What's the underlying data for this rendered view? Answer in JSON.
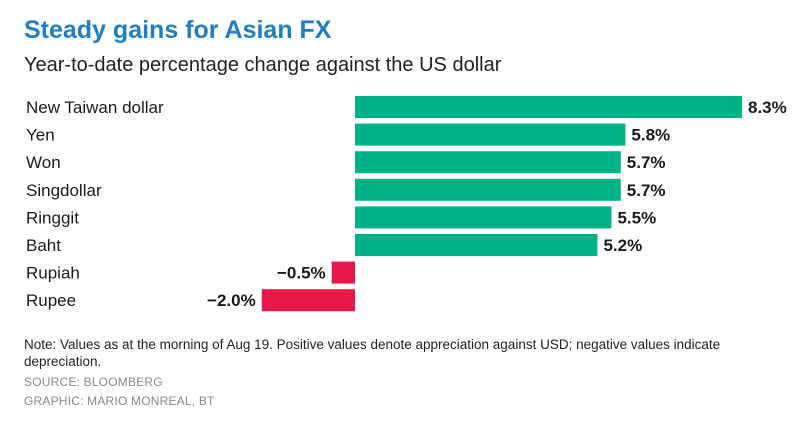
{
  "title": "Steady gains for Asian FX",
  "subtitle": "Year-to-date percentage change against the US dollar",
  "note": "Note: Values as at the morning of Aug 19. Positive values denote appreciation against USD; negative values indicate depreciation.",
  "source": "SOURCE: BLOOMBERG",
  "graphic": "GRAPHIC: MARIO MONREAL, BT",
  "colors": {
    "positive": "#00b386",
    "negative": "#e8194a",
    "title": "#1f7fc0"
  },
  "chart_data": {
    "type": "bar",
    "orientation": "horizontal",
    "title": "Steady gains for Asian FX",
    "subtitle": "Year-to-date percentage change against the US dollar",
    "categories": [
      "New Taiwan dollar",
      "Yen",
      "Won",
      "Singdollar",
      "Ringgit",
      "Baht",
      "Rupiah",
      "Rupee"
    ],
    "values": [
      8.3,
      5.8,
      5.7,
      5.7,
      5.5,
      5.2,
      -0.5,
      -2.0
    ],
    "value_labels": [
      "8.3%",
      "5.8%",
      "5.7%",
      "5.7%",
      "5.5%",
      "5.2%",
      "−0.5%",
      "−2.0%"
    ],
    "xlim": [
      -2.0,
      8.3
    ],
    "grid": false,
    "legend": "none"
  }
}
